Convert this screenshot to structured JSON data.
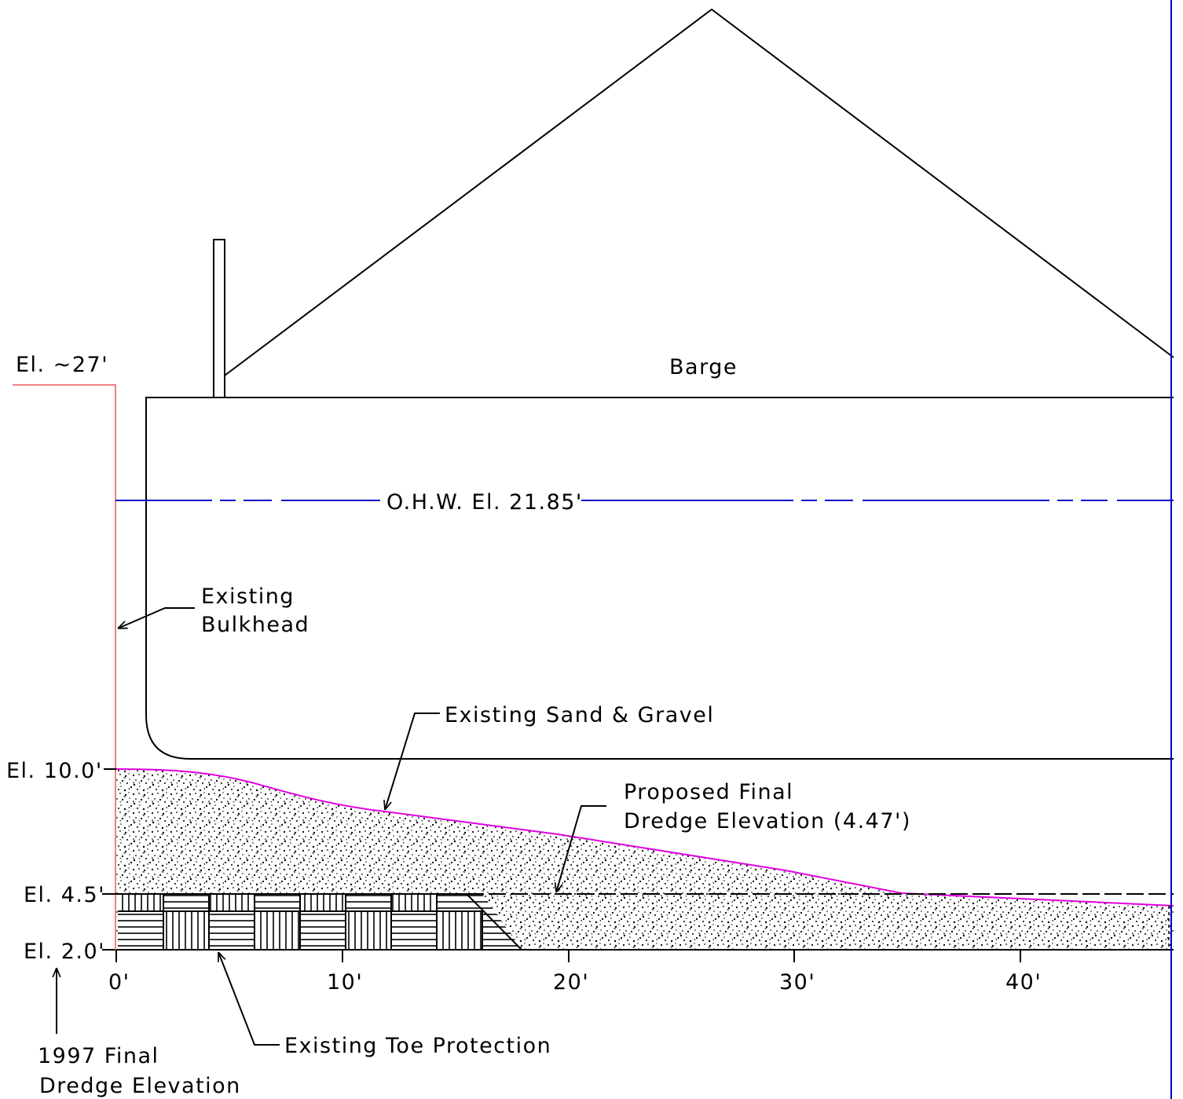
{
  "labels": {
    "barge": "Barge",
    "el_27": "El. ~27'",
    "ohw": "O.H.W. El. 21.85'",
    "bulkhead_line1": "Existing",
    "bulkhead_line2": "Bulkhead",
    "sand_gravel": "Existing Sand & Gravel",
    "proposed_line1": "Proposed Final",
    "proposed_line2": "Dredge Elevation (4.47')",
    "el_10": "El. 10.0'",
    "el_4_5": "El. 4.5'",
    "el_2_0": "El. 2.0'",
    "toe_protection": "Existing Toe Protection",
    "dredge_1997_line1": "1997 Final",
    "dredge_1997_line2": "Dredge Elevation"
  },
  "axis": {
    "ticks": [
      "0'",
      "10'",
      "20'",
      "30'",
      "40'"
    ]
  },
  "colors": {
    "bulkhead": "#f08080",
    "ohw_line": "#0000cc",
    "ground_surface": "#e000e0",
    "line": "#000000"
  }
}
